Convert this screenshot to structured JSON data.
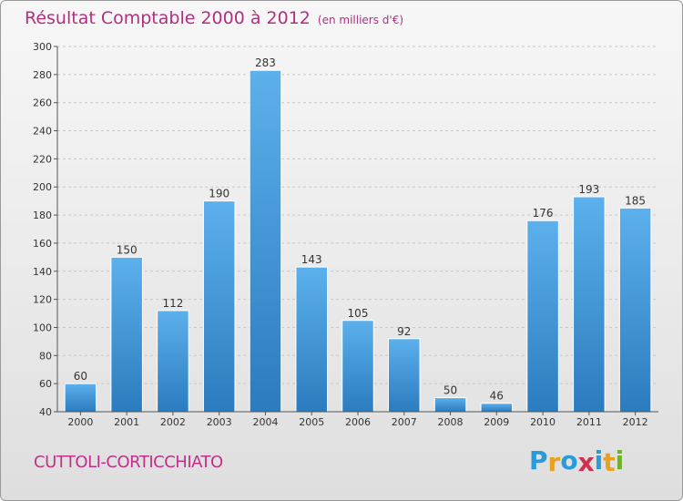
{
  "header": {
    "title": "Résultat Comptable 2000 à 2012",
    "subtitle": "(en milliers d'€)"
  },
  "footer": {
    "city": "CUTTOLI-CORTICCHIATO",
    "logo": {
      "letters": [
        "P",
        "r",
        "o",
        "x",
        "i",
        "t",
        "i"
      ],
      "colors": [
        "#2a9ad8",
        "#e8a020",
        "#2a9ad8",
        "#d03050",
        "#2a9ad8",
        "#e8a020",
        "#70b030"
      ]
    }
  },
  "chart_data": {
    "type": "bar",
    "categories": [
      "2000",
      "2001",
      "2002",
      "2003",
      "2004",
      "2005",
      "2006",
      "2007",
      "2008",
      "2009",
      "2010",
      "2011",
      "2012"
    ],
    "values": [
      60,
      150,
      112,
      190,
      283,
      143,
      105,
      92,
      50,
      46,
      176,
      193,
      185
    ],
    "ylim": [
      40,
      300
    ],
    "yticks": [
      40,
      60,
      80,
      100,
      120,
      140,
      160,
      180,
      200,
      220,
      240,
      260,
      280,
      300
    ],
    "grid": true,
    "bar_color": "#3a96d8"
  }
}
